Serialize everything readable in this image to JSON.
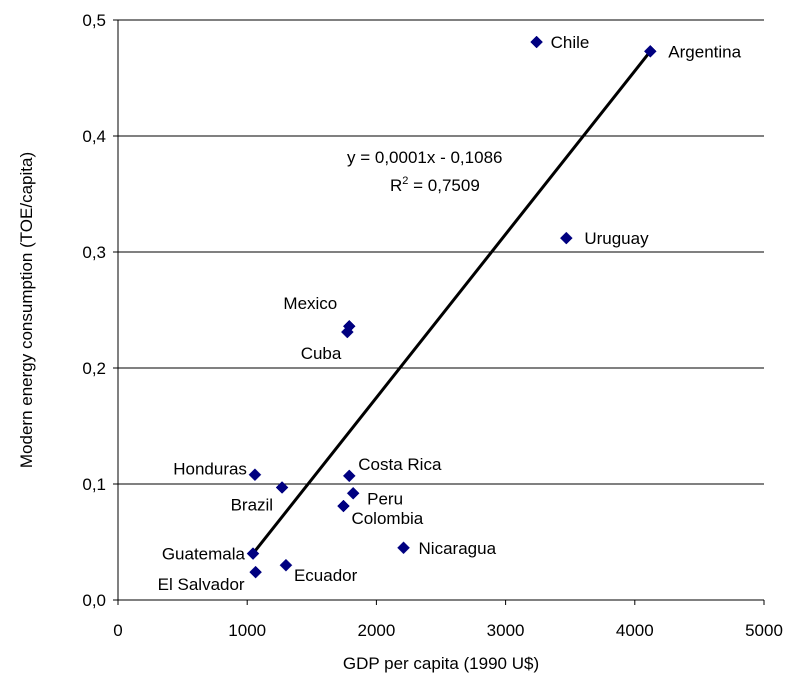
{
  "chart_data": {
    "type": "scatter",
    "title": "",
    "xlabel": "GDP per capita (1990 U$)",
    "ylabel": "Modern energy  consumption (TOE/capita)",
    "xlim": [
      0,
      5000
    ],
    "ylim": [
      0,
      0.5
    ],
    "x_ticks": [
      "0",
      "1000",
      "2000",
      "3000",
      "4000",
      "5000"
    ],
    "y_ticks": [
      "0,0",
      "0,1",
      "0,2",
      "0,3",
      "0,4",
      "0,5"
    ],
    "grid": "horizontal",
    "legend": "none",
    "marker_color": "#000080",
    "points": [
      {
        "label": "Chile",
        "x": 3240,
        "y": 0.481
      },
      {
        "label": "Argentina",
        "x": 4120,
        "y": 0.473
      },
      {
        "label": "Uruguay",
        "x": 3470,
        "y": 0.312
      },
      {
        "label": "Mexico",
        "x": 1790,
        "y": 0.236
      },
      {
        "label": "Cuba",
        "x": 1775,
        "y": 0.231
      },
      {
        "label": "Costa Rica",
        "x": 1790,
        "y": 0.107
      },
      {
        "label": "Honduras",
        "x": 1060,
        "y": 0.108
      },
      {
        "label": "Brazil",
        "x": 1270,
        "y": 0.097
      },
      {
        "label": "Peru",
        "x": 1820,
        "y": 0.092
      },
      {
        "label": "Colombia",
        "x": 1745,
        "y": 0.081
      },
      {
        "label": "Nicaragua",
        "x": 2210,
        "y": 0.045
      },
      {
        "label": "Guatemala",
        "x": 1045,
        "y": 0.04
      },
      {
        "label": "Ecuador",
        "x": 1300,
        "y": 0.03
      },
      {
        "label": "El Salvador",
        "x": 1065,
        "y": 0.024
      }
    ],
    "trendline": {
      "x": [
        1045,
        4120
      ],
      "y": [
        0.04,
        0.473
      ],
      "equation": "y = 0,0001x - 0,1086",
      "r2_label": "R",
      "r2_sup": "2",
      "r2_value": " = 0,7509"
    }
  }
}
